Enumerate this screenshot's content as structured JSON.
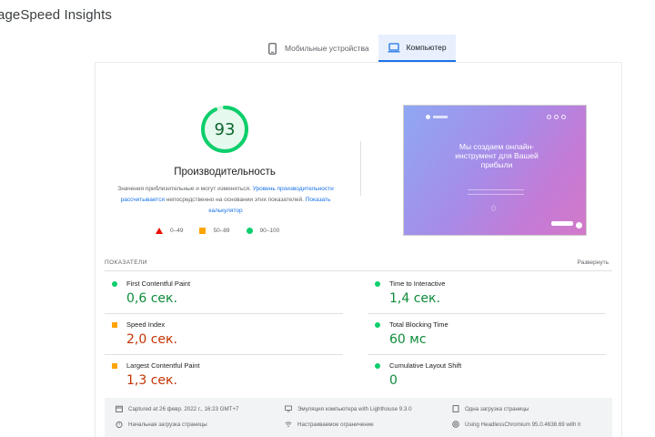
{
  "app": {
    "title": "ageSpeed Insights"
  },
  "tabs": [
    {
      "label": "Мобильные устройства",
      "icon": "smartphone-icon",
      "active": false
    },
    {
      "label": "Компьютер",
      "icon": "laptop-icon",
      "active": true
    }
  ],
  "score": {
    "value": "93",
    "fraction": 0.93,
    "title": "Производительность",
    "desc_1": "Значения приблизительные и могут изменяться. ",
    "desc_link_1": "Уровень производительности рассчитывается",
    "desc_2": " непосредственно на основании этих показателей. ",
    "desc_link_2": "Показать калькулятор",
    "colors": {
      "good": "#0cce6b",
      "average": "#ffa400",
      "poor": "#eb0f00"
    }
  },
  "legend": [
    {
      "range": "0–49",
      "shape": "triangle"
    },
    {
      "range": "50–89",
      "shape": "square"
    },
    {
      "range": "90–100",
      "shape": "circle"
    }
  ],
  "screenshot": {
    "headline": "Мы создаем онлайн-инструмент для Вашей прибыли",
    "zero": "0"
  },
  "metrics": {
    "label": "ПОКАЗАТЕЛИ",
    "expand": "Развернуть",
    "items": [
      {
        "name": "First Contentful Paint",
        "value": "0,6 сек.",
        "status": "good"
      },
      {
        "name": "Time to Interactive",
        "value": "1,4 сек.",
        "status": "good"
      },
      {
        "name": "Speed Index",
        "value": "2,0 сек.",
        "status": "average"
      },
      {
        "name": "Total Blocking Time",
        "value": "60 мс",
        "status": "good"
      },
      {
        "name": "Largest Contentful Paint",
        "value": "1,3 сек.",
        "status": "average"
      },
      {
        "name": "Cumulative Layout Shift",
        "value": "0",
        "status": "good"
      }
    ]
  },
  "footer": {
    "captured": "Captured at 26 февр. 2022 г., 16:23 GMT+7",
    "emulation": "Эмуляция компьютера with Lighthouse 9.3.0",
    "single_load": "Одна загрузка страницы",
    "initial_load": "Начальная загрузка страницы",
    "throttling": "Настраиваемое ограничение",
    "browser": "Using HeadlessChromium 95.0.4638.69 with lr"
  }
}
